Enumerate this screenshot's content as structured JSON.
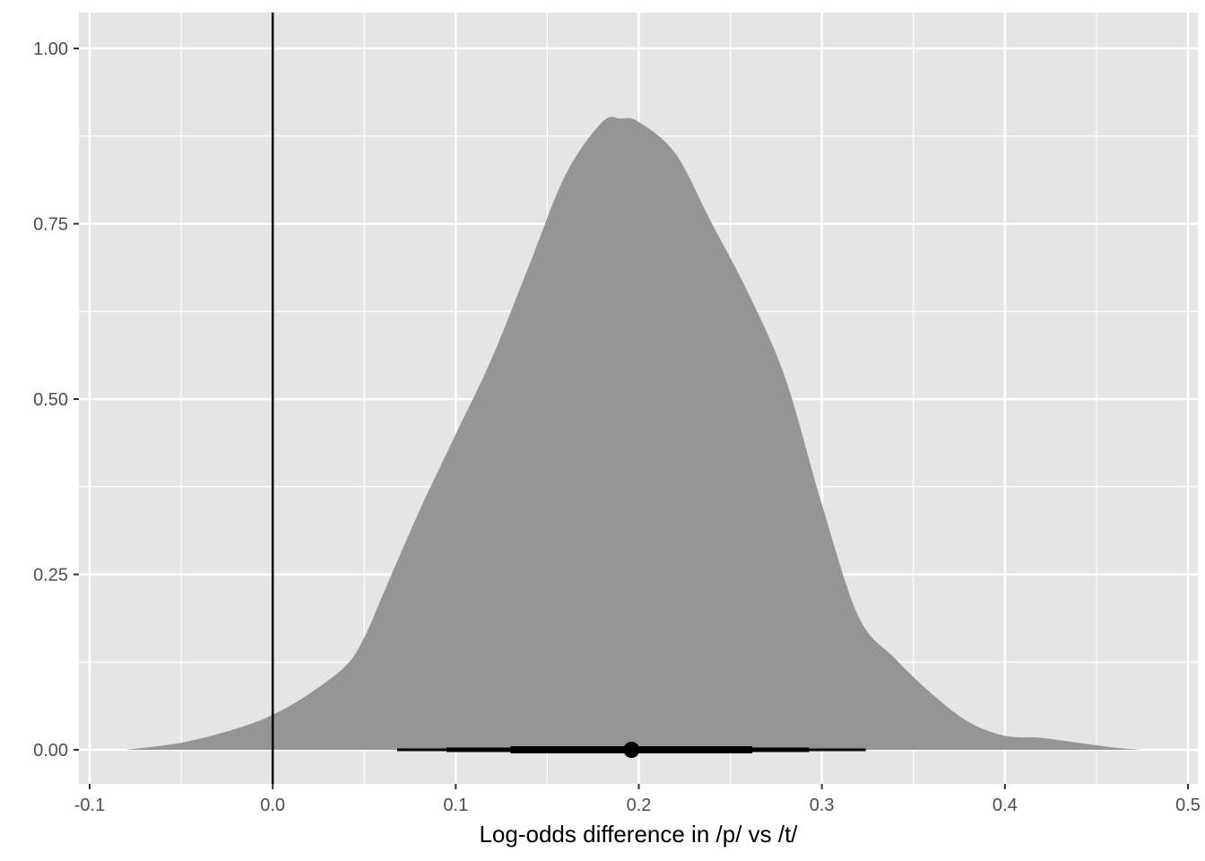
{
  "chart_data": {
    "type": "area",
    "title": "",
    "xlabel": "Log-odds difference in /p/ vs /t/",
    "ylabel": "",
    "xlim": [
      -0.1,
      0.5
    ],
    "ylim": [
      0,
      1.0
    ],
    "x_ticks": [
      -0.1,
      0.0,
      0.1,
      0.2,
      0.3,
      0.4,
      0.5
    ],
    "x_tick_labels": [
      "-0.1",
      "0.0",
      "0.1",
      "0.2",
      "0.3",
      "0.4",
      "0.5"
    ],
    "y_ticks": [
      0,
      0.25,
      0.5,
      0.75,
      1.0
    ],
    "y_tick_labels": [
      "0.00",
      "0.25",
      "0.50",
      "0.75",
      "1.00"
    ],
    "grid": true,
    "legend": "none",
    "reference_line_x": 0,
    "density": {
      "x": [
        -0.08,
        -0.05,
        -0.02,
        0.0,
        0.02,
        0.04,
        0.05,
        0.06,
        0.08,
        0.1,
        0.12,
        0.14,
        0.16,
        0.18,
        0.19,
        0.2,
        0.22,
        0.24,
        0.26,
        0.28,
        0.3,
        0.32,
        0.34,
        0.36,
        0.38,
        0.4,
        0.42,
        0.44,
        0.46,
        0.475
      ],
      "y": [
        0.0,
        0.01,
        0.03,
        0.05,
        0.08,
        0.12,
        0.16,
        0.22,
        0.34,
        0.45,
        0.56,
        0.69,
        0.82,
        0.895,
        0.9,
        0.895,
        0.85,
        0.75,
        0.65,
        0.53,
        0.35,
        0.19,
        0.13,
        0.08,
        0.04,
        0.02,
        0.017,
        0.01,
        0.003,
        0.0
      ]
    },
    "point_estimate": 0.196,
    "intervals": [
      {
        "lower": 0.068,
        "upper": 0.324
      },
      {
        "lower": 0.095,
        "upper": 0.293
      },
      {
        "lower": 0.13,
        "upper": 0.262
      }
    ],
    "colors": {
      "panel": "#e5e5e5",
      "grid": "#ffffff",
      "density_fill": "#959595",
      "marks": "#000000"
    }
  }
}
